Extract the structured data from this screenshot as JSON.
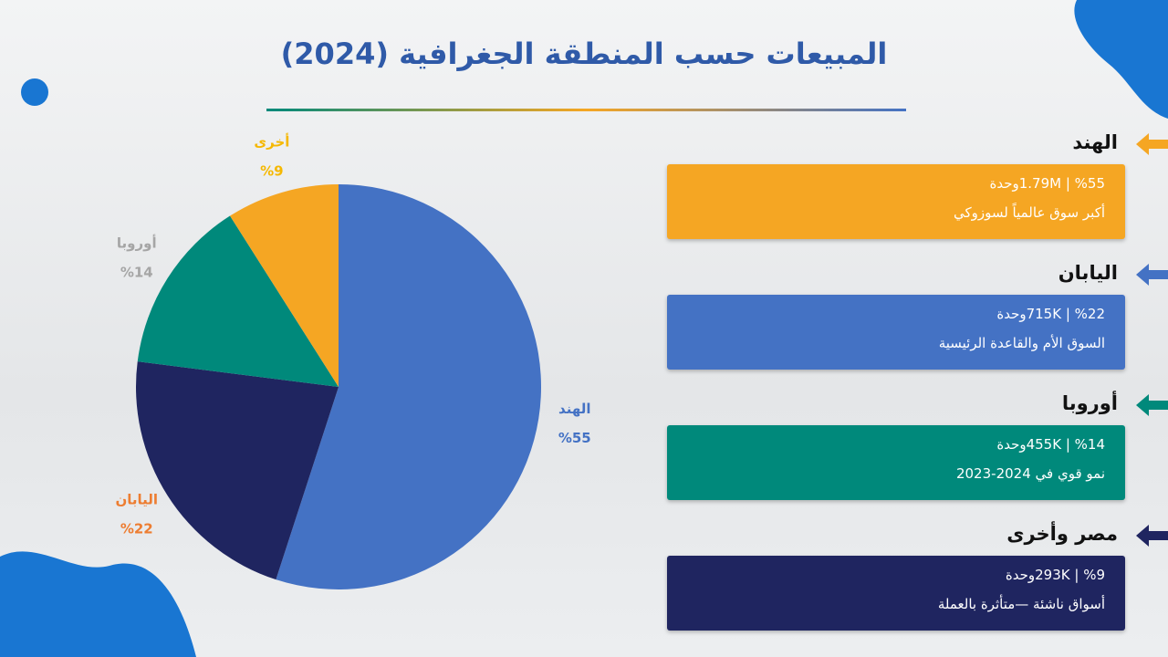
{
  "title": "المبيعات حسب المنطقة الجغرافية (2024)",
  "chart_data": {
    "type": "pie",
    "categories": [
      "الهند",
      "اليابان",
      "أوروبا",
      "أخرى"
    ],
    "values": [
      55,
      22,
      14,
      9
    ],
    "value_labels": [
      "%55",
      "%22",
      "%14",
      "%9"
    ],
    "colors": [
      "#4472c4",
      "#1f2560",
      "#00897b",
      "#f5a623"
    ],
    "label_colors": [
      "#4472c4",
      "#ed7d31",
      "#a5a5a5",
      "#f5b800"
    ]
  },
  "cards": [
    {
      "heading": "الهند",
      "line1": "1.79M | %55وحدة",
      "line2": "أكبر سوق عالمياً لسوزوكي",
      "color": "#f5a623"
    },
    {
      "heading": "اليابان",
      "line1": "715K | %22وحدة",
      "line2": "السوق الأم والقاعدة الرئيسية",
      "color": "#4472c4"
    },
    {
      "heading": "أوروبا",
      "line1": "455K | %14وحدة",
      "line2": "نمو قوي في 2024-2023",
      "color": "#00897b"
    },
    {
      "heading": "مصر وأخرى",
      "line1": "293K | %9وحدة",
      "line2": "أسواق ناشئة —متأثرة بالعملة",
      "color": "#1f2560"
    }
  ]
}
